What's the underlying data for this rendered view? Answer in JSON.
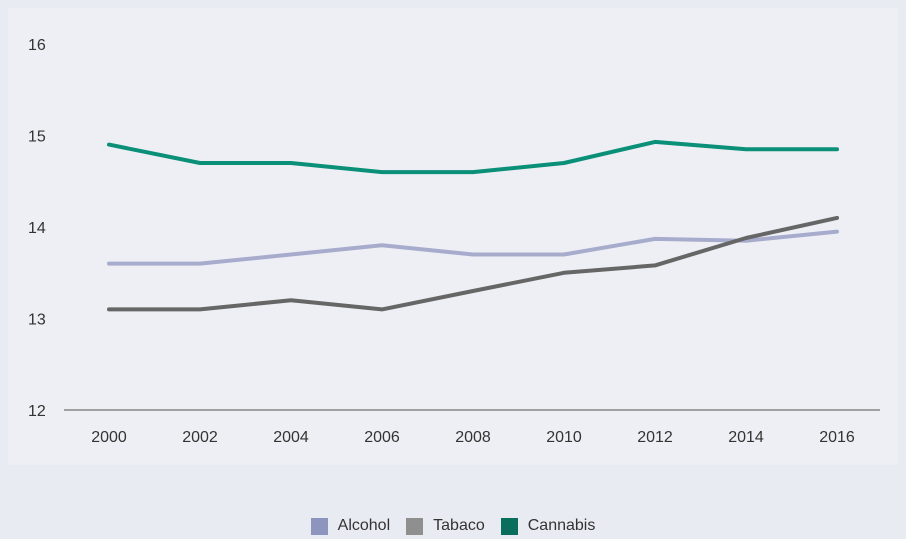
{
  "chart_data": {
    "type": "line",
    "title": "",
    "xlabel": "",
    "ylabel": "",
    "x": [
      "2000",
      "2002",
      "2004",
      "2006",
      "2008",
      "2010",
      "2012",
      "2014",
      "2016"
    ],
    "y_ticks": [
      "12",
      "13",
      "14",
      "15",
      "16"
    ],
    "ylim": [
      12,
      16
    ],
    "grid": false,
    "legend_position": "bottom",
    "series": [
      {
        "name": "Alcohol",
        "color": "#a7accd",
        "values": [
          13.6,
          13.6,
          13.7,
          13.8,
          13.7,
          13.7,
          13.87,
          13.85,
          13.95
        ]
      },
      {
        "name": "Tabaco",
        "color": "#666666",
        "values": [
          13.1,
          13.1,
          13.2,
          13.1,
          13.3,
          13.5,
          13.58,
          13.88,
          14.1
        ]
      },
      {
        "name": "Cannabis",
        "color": "#0a8f78",
        "values": [
          14.9,
          14.7,
          14.7,
          14.6,
          14.6,
          14.7,
          14.93,
          14.85,
          14.85
        ]
      }
    ]
  },
  "legend": {
    "items": [
      {
        "label": "Alcohol",
        "color": "#8d94bd"
      },
      {
        "label": "Tabaco",
        "color": "#8f8f8f"
      },
      {
        "label": "Cannabis",
        "color": "#0a6e5c"
      }
    ]
  }
}
